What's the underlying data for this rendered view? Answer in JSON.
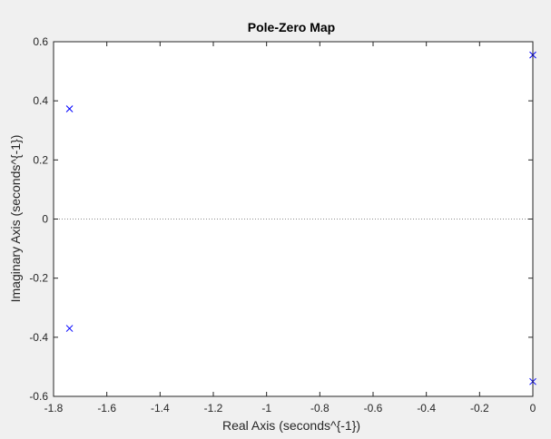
{
  "chart_data": {
    "type": "scatter",
    "title": "Pole-Zero Map",
    "xlabel": "Real Axis (seconds^{-1})",
    "ylabel": "Imaginary Axis (seconds^{-1})",
    "xlim": [
      -1.8,
      0
    ],
    "ylim": [
      -0.6,
      0.6
    ],
    "xticks": [
      -1.8,
      -1.6,
      -1.4,
      -1.2,
      -1,
      -0.8,
      -0.6,
      -0.4,
      -0.2,
      0
    ],
    "xtick_labels": [
      "-1.8",
      "-1.6",
      "-1.4",
      "-1.2",
      "-1",
      "-0.8",
      "-0.6",
      "-0.4",
      "-0.2",
      "0"
    ],
    "yticks": [
      -0.6,
      -0.4,
      -0.2,
      0,
      0.2,
      0.4,
      0.6
    ],
    "ytick_labels": [
      "-0.6",
      "-0.4",
      "-0.2",
      "0",
      "0.2",
      "0.4",
      "0.6"
    ],
    "grid": false,
    "zero_reference_lines": true,
    "series": [
      {
        "marker": "x",
        "color": "#0000ff",
        "points": [
          {
            "x": -1.74,
            "y": 0.373
          },
          {
            "x": -1.74,
            "y": -0.37
          },
          {
            "x": 0.0,
            "y": 0.555
          },
          {
            "x": 0.0,
            "y": -0.55
          }
        ]
      }
    ],
    "colors": {
      "figure_background": "#f0f0f0",
      "axes_background": "#ffffff",
      "axes_color": "#262626",
      "reference_line": "#8c8c8c",
      "marker": "#0000ff"
    }
  }
}
